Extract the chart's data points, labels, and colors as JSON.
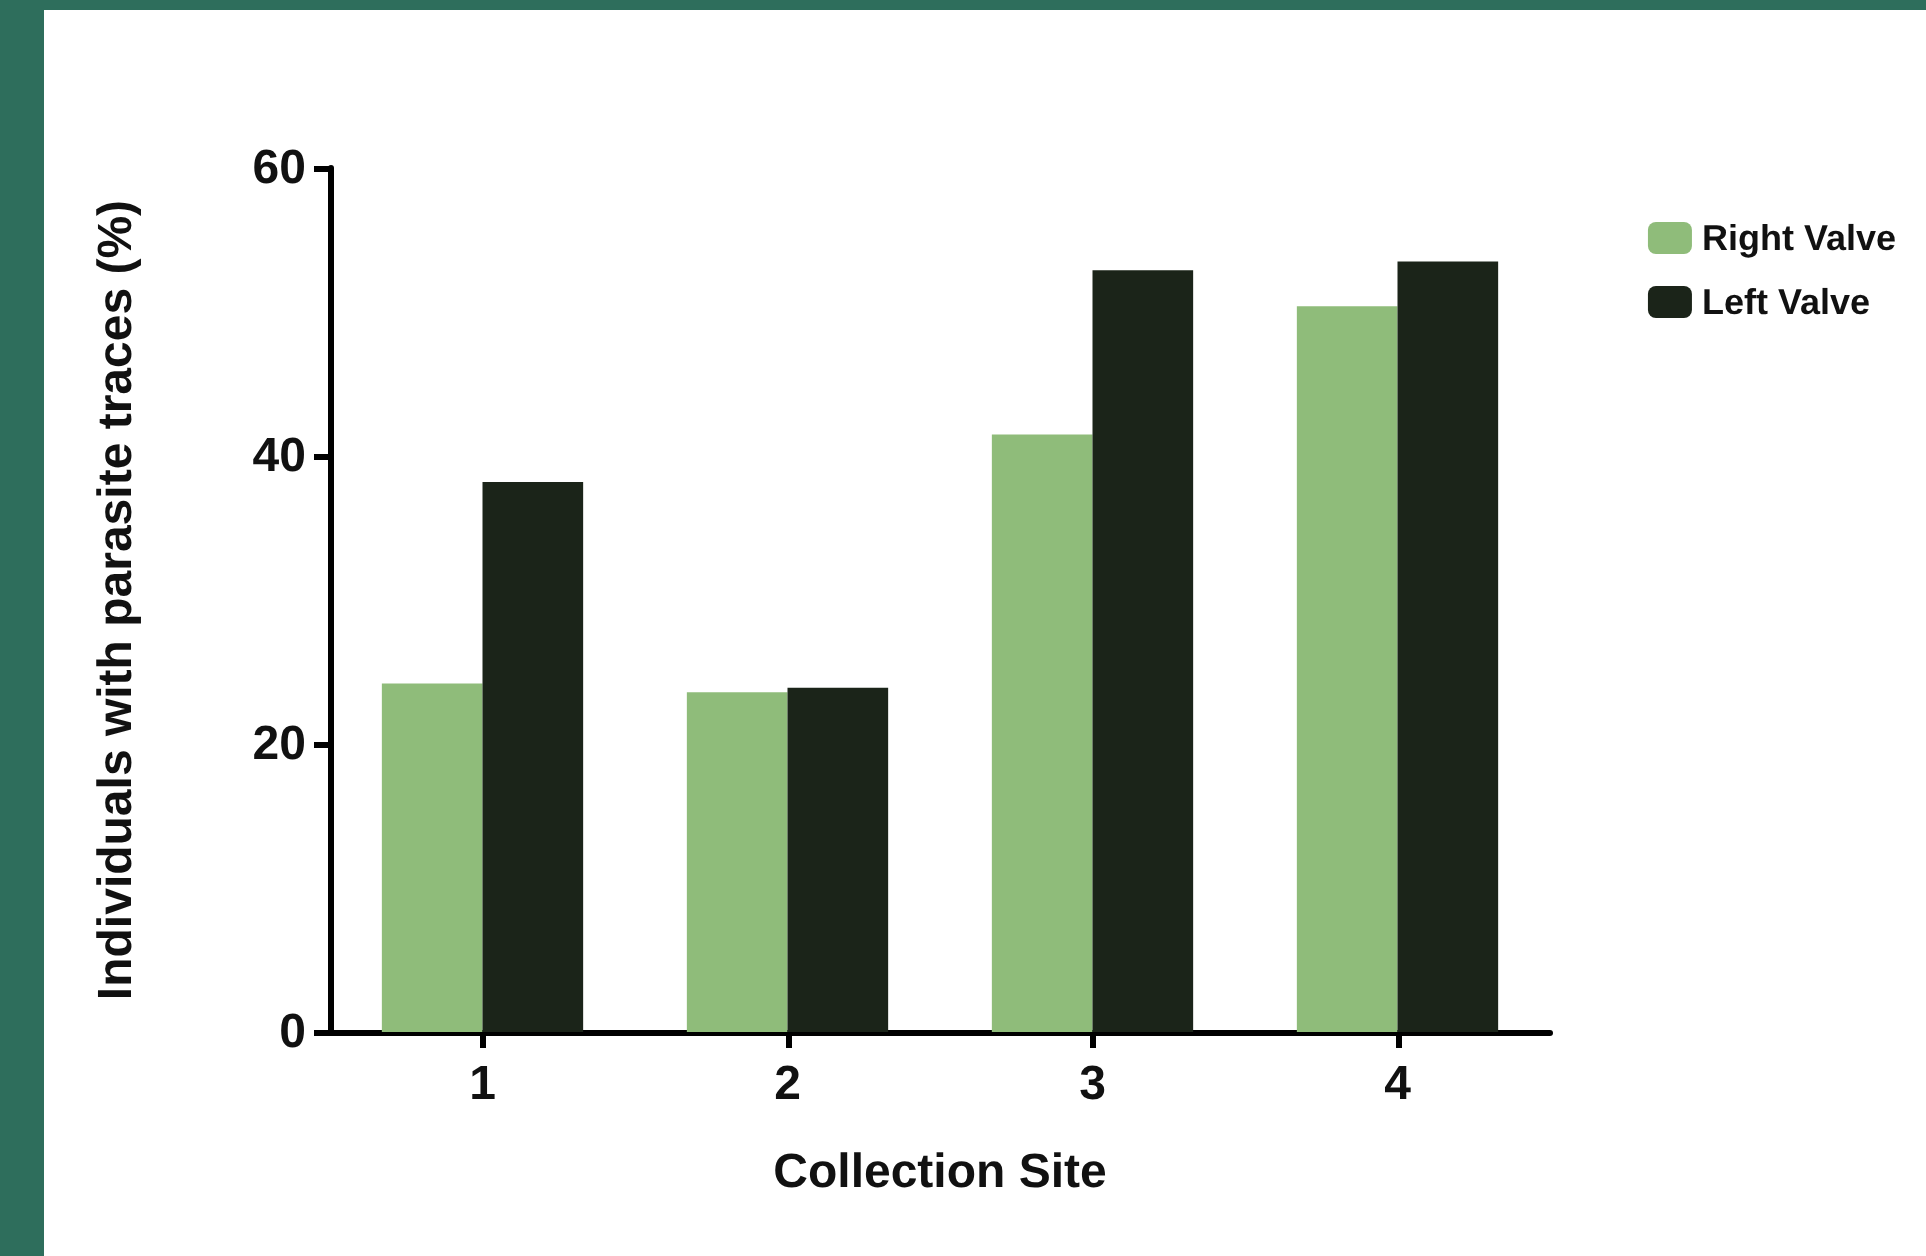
{
  "chart_data": {
    "type": "bar",
    "xlabel": "Collection Site",
    "ylabel": "Individuals with parasite traces (%)",
    "categories": [
      "1",
      "2",
      "3",
      "4"
    ],
    "series": [
      {
        "name": "Right Valve",
        "color": "#8fbc7a",
        "values": [
          24.2,
          23.6,
          41.5,
          50.4
        ]
      },
      {
        "name": "Left Valve",
        "color": "#1b2419",
        "values": [
          38.2,
          23.9,
          52.9,
          53.5
        ]
      }
    ],
    "ylim": [
      0,
      60
    ],
    "yticks": [
      0,
      20,
      40,
      60
    ],
    "grid": false,
    "legend": "top right"
  }
}
